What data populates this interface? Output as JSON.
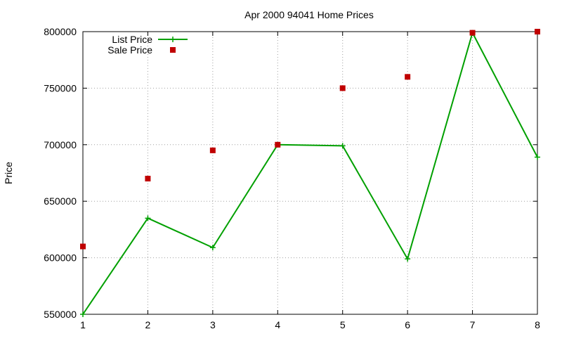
{
  "chart_data": {
    "type": "line",
    "title": "Apr 2000 94041 Home Prices",
    "xlabel": "",
    "ylabel": "Price",
    "xlim": [
      1,
      8
    ],
    "ylim": [
      550000,
      800000
    ],
    "x_ticks": [
      "1",
      "2",
      "3",
      "4",
      "5",
      "6",
      "7",
      "8"
    ],
    "y_ticks": [
      "550000",
      "600000",
      "650000",
      "700000",
      "750000",
      "800000"
    ],
    "grid": true,
    "legend_position": "top-left",
    "x": [
      1,
      2,
      3,
      4,
      5,
      6,
      7,
      8
    ],
    "series": [
      {
        "name": "List Price",
        "style": "linespoints",
        "marker": "plus",
        "color": "#00a000",
        "values": [
          550000,
          635000,
          609000,
          700000,
          699000,
          599000,
          799000,
          689000
        ]
      },
      {
        "name": "Sale Price",
        "style": "points",
        "marker": "square",
        "color": "#c00000",
        "values": [
          610000,
          670000,
          695000,
          700000,
          750000,
          760000,
          799000,
          800000
        ]
      }
    ]
  }
}
